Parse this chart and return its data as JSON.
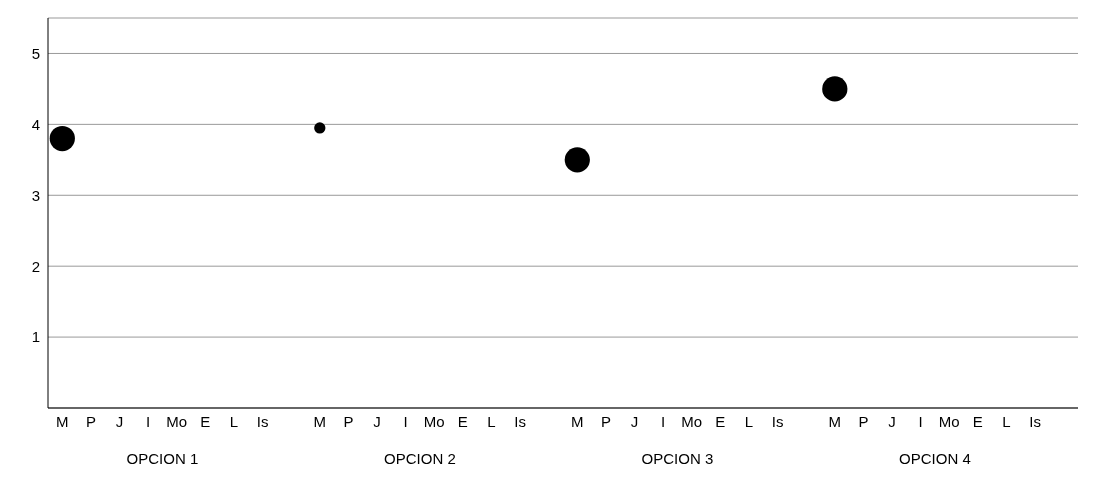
{
  "chart_data": {
    "type": "bubble",
    "categories": [
      "M",
      "P",
      "J",
      "I",
      "Mo",
      "E",
      "L",
      "Is",
      null,
      "M",
      "P",
      "J",
      "I",
      "Mo",
      "E",
      "L",
      "Is",
      null,
      "M",
      "P",
      "J",
      "I",
      "Mo",
      "E",
      "L",
      "Is",
      null,
      "M",
      "P",
      "J",
      "I",
      "Mo",
      "E",
      "L",
      "Is",
      null
    ],
    "values": [
      3.8,
      null,
      null,
      null,
      null,
      null,
      null,
      null,
      null,
      3.95,
      null,
      null,
      null,
      null,
      null,
      null,
      null,
      null,
      3.5,
      null,
      null,
      null,
      null,
      null,
      null,
      null,
      null,
      4.5,
      null,
      null,
      null,
      null,
      null,
      null,
      null,
      null
    ],
    "sizes": [
      1,
      null,
      null,
      null,
      null,
      null,
      null,
      null,
      null,
      0.2,
      null,
      null,
      null,
      null,
      null,
      null,
      null,
      null,
      1,
      null,
      null,
      null,
      null,
      null,
      null,
      null,
      null,
      1,
      null,
      null,
      null,
      null,
      null,
      null,
      null,
      null
    ],
    "color": "#000000",
    "ylim": [
      0,
      5.5
    ],
    "yticks": [
      1,
      2,
      3,
      4,
      5
    ],
    "grid": "y",
    "annotations": [
      "OPCION 1",
      "OPCION 2",
      "OPCION 3",
      "OPCION 4"
    ]
  }
}
